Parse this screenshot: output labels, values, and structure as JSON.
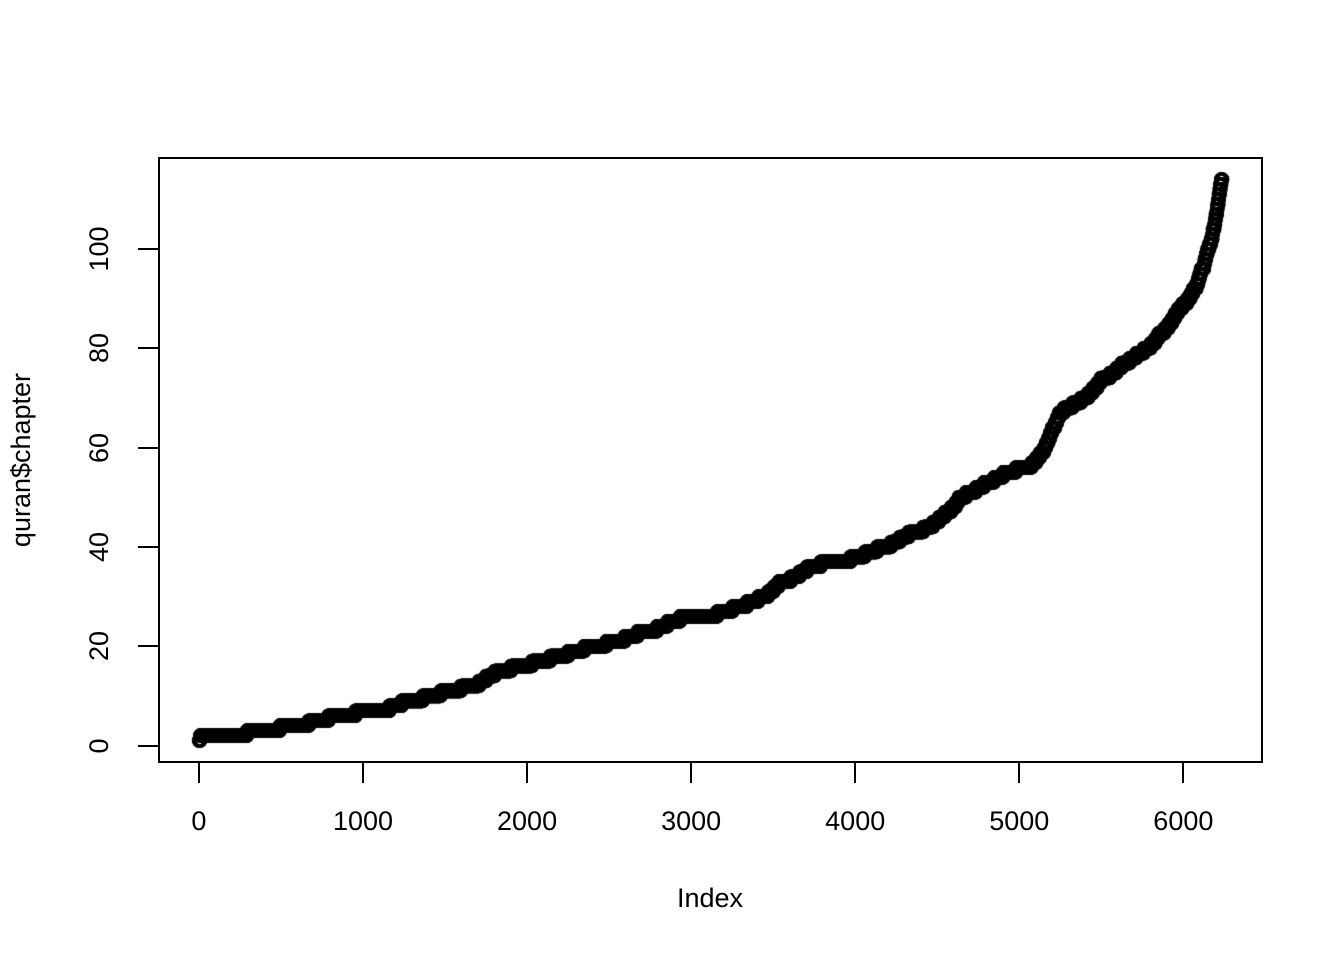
{
  "colors": {
    "background": "#ffffff",
    "foreground": "#000000"
  },
  "chart_data": {
    "type": "scatter",
    "title": "",
    "xlabel": "Index",
    "ylabel": "quran$chapter",
    "x_ticks": [
      0,
      1000,
      2000,
      3000,
      4000,
      5000,
      6000
    ],
    "y_ticks": [
      0,
      20,
      40,
      60,
      80,
      100
    ],
    "xlim": [
      -249.4,
      6485.4
    ],
    "ylim": [
      -3.52,
      118.52
    ],
    "x_range": [
      1,
      6236
    ],
    "y_range": [
      1,
      114
    ],
    "n_points": 6236,
    "grid": "off",
    "legend": "none",
    "marker": {
      "shape": "open-circle",
      "color": "#000000",
      "radius_px": 5.5,
      "stroke_px": 3.6
    },
    "series_description": "y = chapter number of verse at position x (verses in canonical order); step heights below give verses per chapter 1..114",
    "verses_per_chapter": [
      7,
      286,
      200,
      176,
      120,
      165,
      206,
      75,
      129,
      109,
      123,
      111,
      43,
      52,
      99,
      128,
      111,
      110,
      98,
      135,
      112,
      78,
      118,
      64,
      77,
      227,
      93,
      88,
      69,
      60,
      34,
      30,
      73,
      54,
      45,
      83,
      182,
      88,
      75,
      85,
      54,
      53,
      89,
      59,
      37,
      35,
      38,
      29,
      18,
      45,
      60,
      49,
      62,
      55,
      78,
      96,
      29,
      22,
      24,
      13,
      14,
      11,
      11,
      18,
      12,
      12,
      30,
      52,
      52,
      44,
      28,
      28,
      20,
      56,
      40,
      31,
      50,
      40,
      46,
      42,
      29,
      19,
      36,
      25,
      22,
      17,
      19,
      26,
      30,
      20,
      15,
      21,
      11,
      8,
      8,
      19,
      5,
      8,
      8,
      11,
      11,
      8,
      3,
      9,
      5,
      4,
      7,
      3,
      6,
      3,
      5,
      4,
      5,
      6
    ]
  }
}
